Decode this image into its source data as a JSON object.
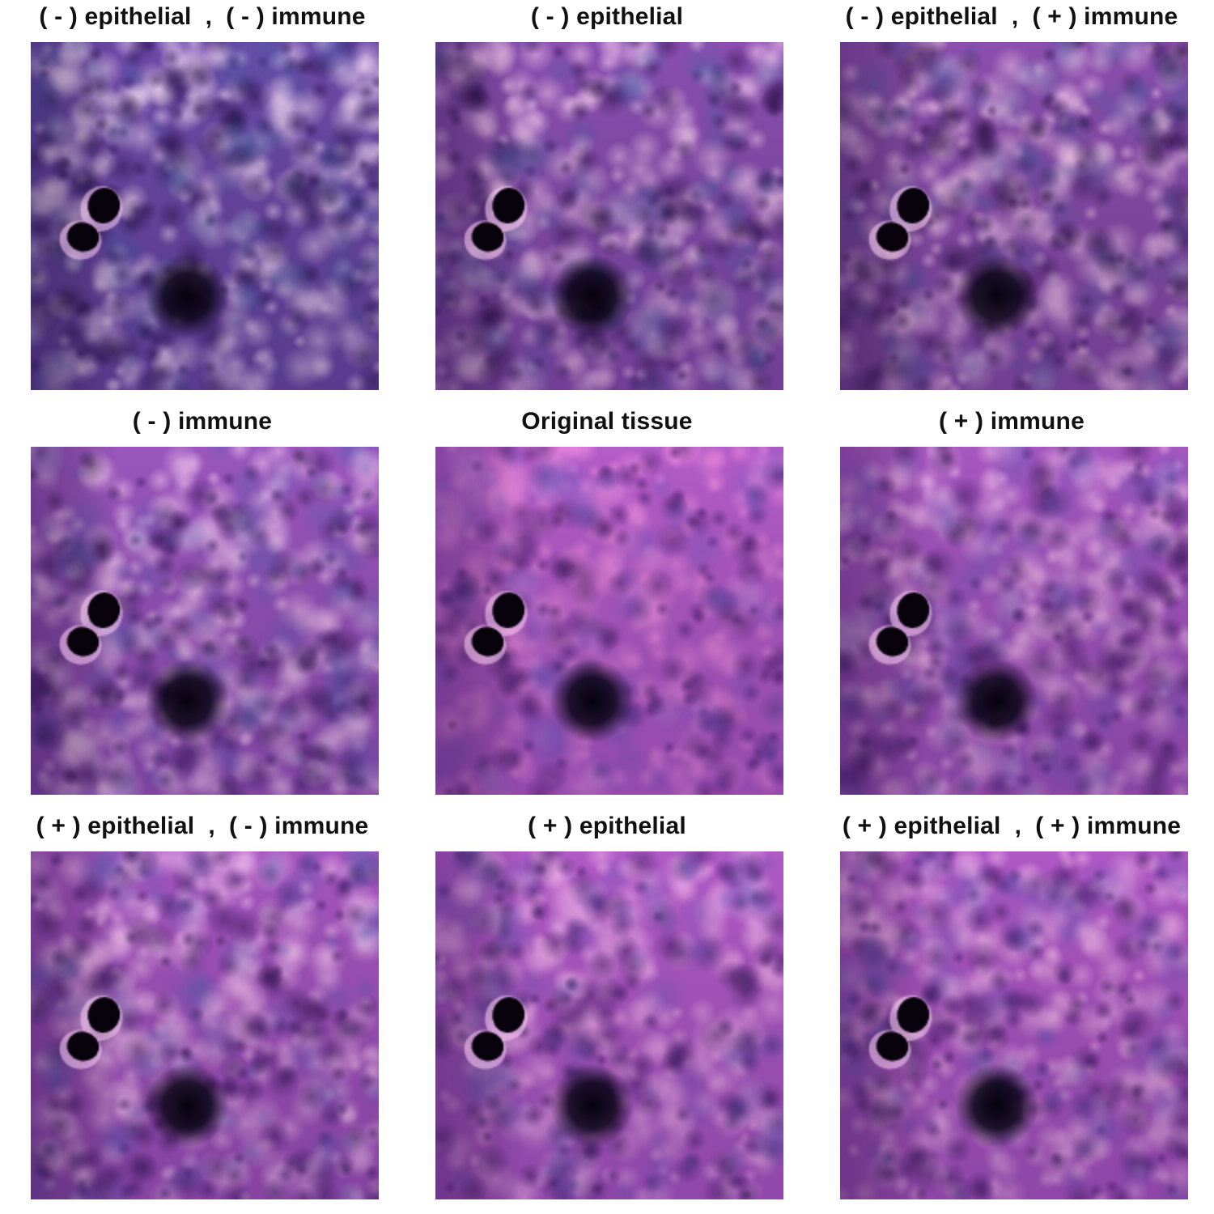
{
  "figure": {
    "panels": [
      {
        "title": "( - ) epithelial  ,  ( - ) immune",
        "palette": {
          "base": "#6f4aa8",
          "light": "#f2d8f5",
          "dark": "#241047",
          "blue": "#4a5aa6"
        }
      },
      {
        "title": "( - ) epithelial",
        "palette": {
          "base": "#8a4fb0",
          "light": "#f4c8ef",
          "dark": "#2a0f4a",
          "blue": "#5060a8"
        }
      },
      {
        "title": "( - ) epithelial  ,  ( + ) immune",
        "palette": {
          "base": "#8c4fae",
          "light": "#f3c6ec",
          "dark": "#2a0f46",
          "blue": "#4e5aa2"
        }
      },
      {
        "title": "( - ) immune",
        "palette": {
          "base": "#9a56bd",
          "light": "#f6c9f2",
          "dark": "#2c104e",
          "blue": "#5b5fb5"
        }
      },
      {
        "title": "Original tissue",
        "palette": {
          "base": "#b45cc8",
          "light": "#f08ee2",
          "dark": "#3a1660",
          "blue": "#6e5bbf"
        }
      },
      {
        "title": "( + ) immune",
        "palette": {
          "base": "#a657c0",
          "light": "#f2b8ea",
          "dark": "#331256",
          "blue": "#6a5ab8"
        }
      },
      {
        "title": "( + ) epithelial  ,  ( - ) immune",
        "palette": {
          "base": "#a455be",
          "light": "#f5bff0",
          "dark": "#2e1152",
          "blue": "#5e5fb4"
        }
      },
      {
        "title": "( + ) epithelial",
        "palette": {
          "base": "#b05ac6",
          "light": "#f3b0ec",
          "dark": "#321358",
          "blue": "#6a5cba"
        }
      },
      {
        "title": "( + ) epithelial  ,  ( + ) immune",
        "palette": {
          "base": "#ae58c4",
          "light": "#f2b4ea",
          "dark": "#311256",
          "blue": "#6558b6"
        }
      }
    ]
  }
}
